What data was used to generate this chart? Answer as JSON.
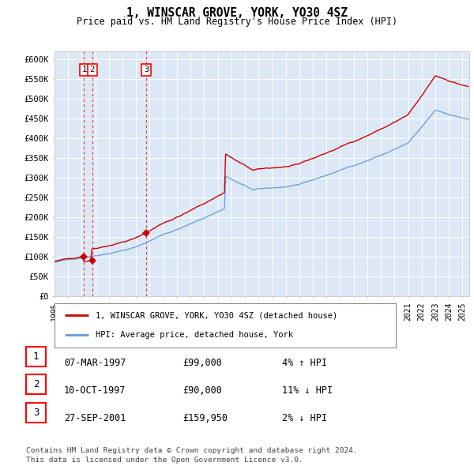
{
  "title": "1, WINSCAR GROVE, YORK, YO30 4SZ",
  "subtitle": "Price paid vs. HM Land Registry's House Price Index (HPI)",
  "plot_bg_color": "#dce8f5",
  "hpi_line_color": "#6699dd",
  "price_line_color": "#cc0000",
  "marker_color": "#cc0000",
  "ylim": [
    0,
    620000
  ],
  "yticks": [
    0,
    50000,
    100000,
    150000,
    200000,
    250000,
    300000,
    350000,
    400000,
    450000,
    500000,
    550000,
    600000
  ],
  "ytick_labels": [
    "£0",
    "£50K",
    "£100K",
    "£150K",
    "£200K",
    "£250K",
    "£300K",
    "£350K",
    "£400K",
    "£450K",
    "£500K",
    "£550K",
    "£600K"
  ],
  "sales": [
    {
      "date_x": 1997.17,
      "price": 99000,
      "label": "1"
    },
    {
      "date_x": 1997.78,
      "price": 90000,
      "label": "2"
    },
    {
      "date_x": 2001.74,
      "price": 159950,
      "label": "3"
    }
  ],
  "table_data": [
    {
      "num": "1",
      "date": "07-MAR-1997",
      "price": "£99,000",
      "hpi": "4% ↑ HPI"
    },
    {
      "num": "2",
      "date": "10-OCT-1997",
      "price": "£90,000",
      "hpi": "11% ↓ HPI"
    },
    {
      "num": "3",
      "date": "27-SEP-2001",
      "price": "£159,950",
      "hpi": "2% ↓ HPI"
    }
  ],
  "legend_label1": "1, WINSCAR GROVE, YORK, YO30 4SZ (detached house)",
  "legend_label2": "HPI: Average price, detached house, York",
  "footer": "Contains HM Land Registry data © Crown copyright and database right 2024.\nThis data is licensed under the Open Government Licence v3.0.",
  "xlim_start": 1995.0,
  "xlim_end": 2025.5
}
